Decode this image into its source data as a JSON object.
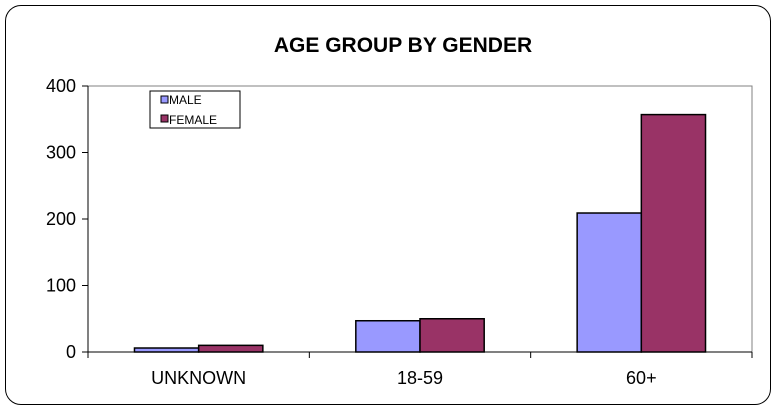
{
  "chart_data": {
    "type": "bar",
    "title": "AGE GROUP BY GENDER",
    "categories": [
      "UNKNOWN",
      "18-59",
      "60+"
    ],
    "series": [
      {
        "name": "MALE",
        "values": [
          6,
          47,
          209
        ],
        "color": "#9999ff"
      },
      {
        "name": "FEMALE",
        "values": [
          10,
          50,
          357
        ],
        "color": "#993366"
      }
    ],
    "yticks": [
      0,
      100,
      200,
      300,
      400
    ],
    "ylim": [
      0,
      400
    ],
    "xlabel": "",
    "ylabel": "",
    "grid": false,
    "legend": "top-left"
  }
}
